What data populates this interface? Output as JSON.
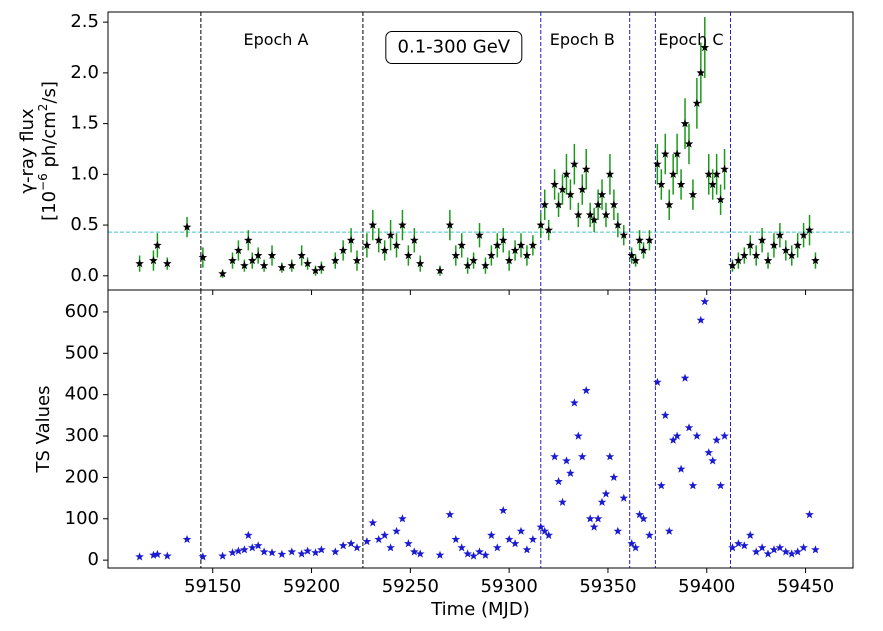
{
  "chart_data": [
    {
      "type": "scatter",
      "ylabel": "γ-ray flux",
      "ylabel_units": [
        "[10",
        "−6",
        " ph/cm",
        "2",
        "/s]"
      ],
      "xlim": [
        59097,
        59474
      ],
      "xticks": [
        59150,
        59200,
        59250,
        59300,
        59350,
        59400,
        59450
      ],
      "ylim": [
        -0.14,
        2.6
      ],
      "yticks": [
        {
          "value": 0,
          "label": "0.0"
        },
        0.5,
        {
          "value": 1,
          "label": "1.0"
        },
        1.5,
        {
          "value": 2,
          "label": "2.0"
        },
        2.5
      ],
      "marker_color": "#000000",
      "error_color": "#1a9a1a",
      "vlines": [
        {
          "x": 59144,
          "color": "#000000"
        },
        {
          "x": 59226,
          "color": "#000000"
        },
        {
          "x": 59316,
          "color": "#2020d0"
        },
        {
          "x": 59361,
          "color": "#2020d0"
        },
        {
          "x": 59374,
          "color": "#2020d0"
        },
        {
          "x": 59412,
          "color": "#2020d0"
        }
      ],
      "hline": {
        "y": 0.43,
        "color": "#40c8c8"
      },
      "annotations": [
        {
          "text": "Epoch A",
          "x": 59182,
          "y": 2.32
        },
        {
          "text": "Epoch B",
          "x": 59337,
          "y": 2.32
        },
        {
          "text": "Epoch C",
          "x": 59392,
          "y": 2.32
        }
      ],
      "energy_label": {
        "text": "0.1-300 GeV",
        "x": 59272,
        "y": 2.25
      },
      "x": [
        59113,
        59120,
        59122,
        59127,
        59137,
        59145,
        59155,
        59160,
        59163,
        59166,
        59168,
        59170,
        59173,
        59176,
        59180,
        59185,
        59190,
        59195,
        59198,
        59202,
        59205,
        59212,
        59216,
        59220,
        59223,
        59228,
        59231,
        59234,
        59237,
        59240,
        59243,
        59246,
        59249,
        59252,
        59255,
        59265,
        59270,
        59273,
        59276,
        59279,
        59282,
        59285,
        59288,
        59291,
        59294,
        59297,
        59300,
        59303,
        59306,
        59309,
        59312,
        59316,
        59318,
        59320,
        59323,
        59325,
        59327,
        59329,
        59331,
        59333,
        59335,
        59337,
        59339,
        59341,
        59343,
        59345,
        59347,
        59349,
        59351,
        59353,
        59355,
        59358,
        59362,
        59364,
        59366,
        59368,
        59371,
        59375,
        59377,
        59379,
        59381,
        59383,
        59385,
        59387,
        59389,
        59391,
        59393,
        59395,
        59397,
        59399,
        59401,
        59403,
        59405,
        59407,
        59409,
        59413,
        59416,
        59419,
        59422,
        59425,
        59428,
        59431,
        59434,
        59437,
        59440,
        59443,
        59446,
        59449,
        59452,
        59455
      ],
      "values": [
        0.12,
        0.15,
        0.3,
        0.12,
        0.48,
        0.18,
        0.02,
        0.15,
        0.25,
        0.1,
        0.35,
        0.15,
        0.2,
        0.1,
        0.2,
        0.08,
        0.1,
        0.2,
        0.12,
        0.05,
        0.08,
        0.15,
        0.25,
        0.35,
        0.15,
        0.3,
        0.5,
        0.35,
        0.25,
        0.4,
        0.3,
        0.5,
        0.2,
        0.35,
        0.12,
        0.05,
        0.5,
        0.2,
        0.3,
        0.1,
        0.15,
        0.4,
        0.1,
        0.2,
        0.3,
        0.35,
        0.15,
        0.25,
        0.3,
        0.2,
        0.3,
        0.5,
        0.7,
        0.45,
        0.9,
        0.7,
        0.85,
        1.0,
        0.8,
        1.1,
        0.6,
        0.85,
        1.05,
        0.6,
        0.55,
        0.7,
        0.8,
        0.6,
        1.0,
        0.7,
        0.5,
        0.4,
        0.2,
        0.15,
        0.35,
        0.25,
        0.35,
        1.1,
        0.9,
        1.2,
        0.7,
        1.0,
        1.2,
        0.9,
        1.5,
        1.3,
        0.8,
        1.7,
        2.0,
        2.25,
        1.0,
        0.9,
        1.0,
        0.75,
        1.05,
        0.1,
        0.15,
        0.2,
        0.3,
        0.2,
        0.35,
        0.15,
        0.3,
        0.4,
        0.25,
        0.2,
        0.3,
        0.4,
        0.45,
        0.15
      ],
      "errors": [
        0.08,
        0.1,
        0.12,
        0.06,
        0.1,
        0.1,
        0.04,
        0.08,
        0.1,
        0.06,
        0.1,
        0.08,
        0.08,
        0.06,
        0.1,
        0.05,
        0.06,
        0.1,
        0.06,
        0.05,
        0.06,
        0.08,
        0.1,
        0.12,
        0.1,
        0.12,
        0.15,
        0.12,
        0.1,
        0.15,
        0.12,
        0.15,
        0.1,
        0.12,
        0.08,
        0.05,
        0.15,
        0.1,
        0.12,
        0.08,
        0.08,
        0.12,
        0.08,
        0.1,
        0.12,
        0.12,
        0.1,
        0.1,
        0.12,
        0.1,
        0.1,
        0.12,
        0.15,
        0.1,
        0.15,
        0.12,
        0.15,
        0.2,
        0.15,
        0.2,
        0.12,
        0.15,
        0.2,
        0.12,
        0.12,
        0.15,
        0.15,
        0.12,
        0.2,
        0.15,
        0.12,
        0.1,
        0.08,
        0.06,
        0.1,
        0.08,
        0.1,
        0.2,
        0.15,
        0.2,
        0.15,
        0.2,
        0.2,
        0.15,
        0.25,
        0.2,
        0.15,
        0.25,
        0.3,
        0.3,
        0.2,
        0.15,
        0.2,
        0.15,
        0.2,
        0.06,
        0.08,
        0.08,
        0.1,
        0.1,
        0.12,
        0.08,
        0.12,
        0.12,
        0.1,
        0.1,
        0.12,
        0.12,
        0.15,
        0.08
      ]
    },
    {
      "type": "scatter",
      "ylabel": "TS Values",
      "xlabel": "Time (MJD)",
      "xlim": [
        59097,
        59474
      ],
      "xticks": [
        59150,
        59200,
        59250,
        59300,
        59350,
        59400,
        59450
      ],
      "ylim": [
        -19,
        653
      ],
      "yticks": [
        0,
        100,
        200,
        300,
        400,
        500,
        600
      ],
      "marker_color": "#1a1ad0",
      "x": [
        59113,
        59120,
        59122,
        59127,
        59137,
        59145,
        59155,
        59160,
        59163,
        59166,
        59168,
        59170,
        59173,
        59176,
        59180,
        59185,
        59190,
        59195,
        59198,
        59202,
        59205,
        59212,
        59216,
        59220,
        59223,
        59228,
        59231,
        59234,
        59237,
        59240,
        59243,
        59246,
        59249,
        59252,
        59255,
        59265,
        59270,
        59273,
        59276,
        59279,
        59282,
        59285,
        59288,
        59291,
        59294,
        59297,
        59300,
        59303,
        59306,
        59309,
        59312,
        59316,
        59318,
        59320,
        59323,
        59325,
        59327,
        59329,
        59331,
        59333,
        59335,
        59337,
        59339,
        59341,
        59343,
        59345,
        59347,
        59349,
        59351,
        59353,
        59355,
        59358,
        59362,
        59364,
        59366,
        59368,
        59371,
        59375,
        59377,
        59379,
        59381,
        59383,
        59385,
        59387,
        59389,
        59391,
        59393,
        59395,
        59397,
        59399,
        59401,
        59403,
        59405,
        59407,
        59409,
        59413,
        59416,
        59419,
        59422,
        59425,
        59428,
        59431,
        59434,
        59437,
        59440,
        59443,
        59446,
        59449,
        59452,
        59455
      ],
      "values": [
        8,
        12,
        14,
        10,
        50,
        8,
        10,
        18,
        22,
        25,
        60,
        30,
        35,
        20,
        18,
        14,
        20,
        15,
        22,
        18,
        25,
        20,
        35,
        40,
        30,
        45,
        90,
        50,
        60,
        30,
        70,
        100,
        40,
        20,
        15,
        12,
        110,
        50,
        30,
        15,
        10,
        20,
        12,
        60,
        30,
        120,
        50,
        40,
        70,
        25,
        50,
        80,
        70,
        60,
        250,
        190,
        140,
        240,
        210,
        380,
        300,
        250,
        410,
        100,
        80,
        100,
        140,
        160,
        250,
        200,
        70,
        150,
        40,
        30,
        110,
        100,
        60,
        430,
        180,
        350,
        70,
        290,
        300,
        220,
        440,
        320,
        180,
        300,
        580,
        625,
        260,
        240,
        290,
        180,
        300,
        30,
        40,
        35,
        60,
        20,
        30,
        15,
        25,
        30,
        20,
        15,
        20,
        30,
        110,
        25
      ]
    }
  ]
}
